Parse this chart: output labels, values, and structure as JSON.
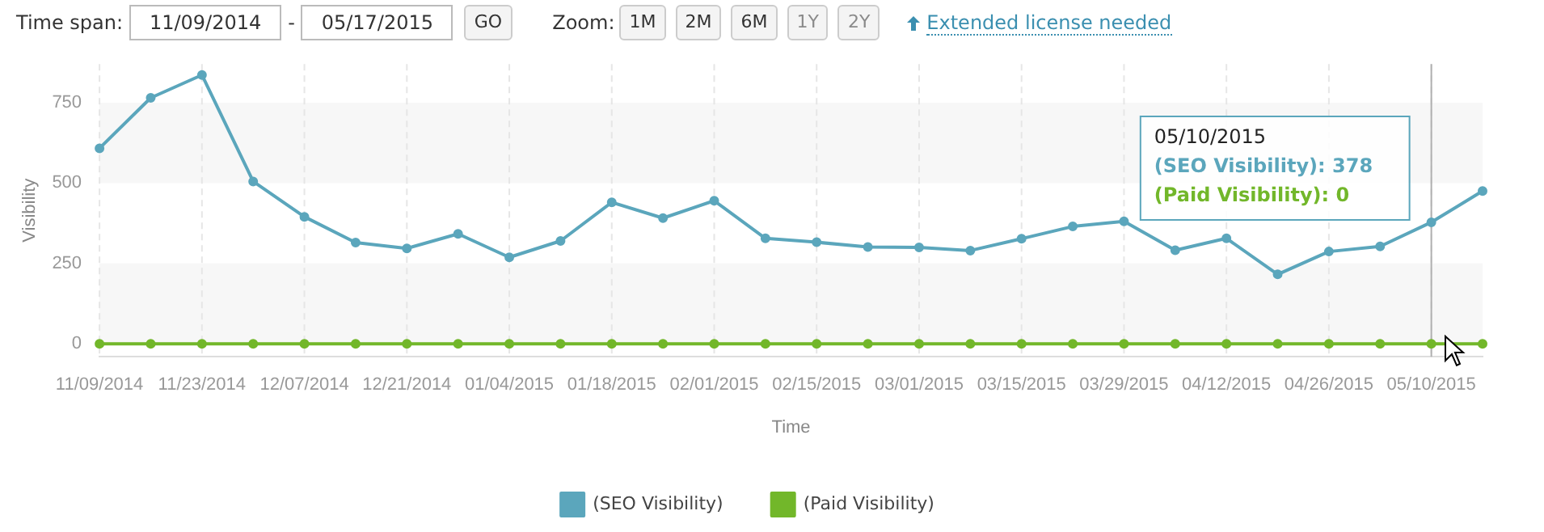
{
  "chart_data": {
    "type": "line",
    "xlabel": "Time",
    "ylabel": "Visibility",
    "categories": [
      "11/09/2014",
      null,
      "11/23/2014",
      null,
      "12/07/2014",
      null,
      "12/21/2014",
      null,
      "01/04/2015",
      null,
      "01/18/2015",
      null,
      "02/01/2015",
      null,
      "02/15/2015",
      null,
      "03/01/2015",
      null,
      "03/15/2015",
      null,
      "03/29/2015",
      null,
      "04/12/2015",
      null,
      "04/26/2015",
      null,
      "05/10/2015",
      null
    ],
    "series": [
      {
        "name": "(SEO Visibility)",
        "color": "#5ba6bc",
        "values": [
          608,
          765,
          836,
          505,
          395,
          315,
          297,
          342,
          269,
          320,
          440,
          391,
          445,
          328,
          316,
          301,
          300,
          290,
          327,
          365,
          381,
          291,
          328,
          216,
          287,
          303,
          378,
          475
        ]
      },
      {
        "name": "(Paid Visibility)",
        "color": "#72b72a",
        "values": [
          0,
          0,
          0,
          0,
          0,
          0,
          0,
          0,
          0,
          0,
          0,
          0,
          0,
          0,
          0,
          0,
          0,
          0,
          0,
          0,
          0,
          0,
          0,
          0,
          0,
          0,
          0,
          0
        ]
      }
    ],
    "ylim": [
      -40,
      870
    ],
    "yticks": [
      0,
      250,
      500,
      750
    ],
    "grid": "x",
    "legend": "bottom",
    "marker": "circle",
    "line_style": "solid",
    "bands": [
      {
        "axis": "y",
        "from": 500,
        "to": 750,
        "color": "#f7f7f7"
      },
      {
        "axis": "y",
        "from": 0,
        "to": 250,
        "color": "#f7f7f7"
      }
    ],
    "ref_lines": [
      {
        "axis": "x",
        "value": "05/10/2015",
        "color": "#b0b0b0"
      }
    ],
    "annotations": [
      "Time span:",
      "11/09/2014",
      "-",
      "05/17/2015",
      "GO",
      "Zoom:",
      "1M",
      "2M",
      "6M",
      "1Y",
      "2Y",
      "Extended license needed",
      "05/10/2015",
      "(SEO Visibility): 378",
      "(Paid Visibility): 0"
    ]
  }
}
